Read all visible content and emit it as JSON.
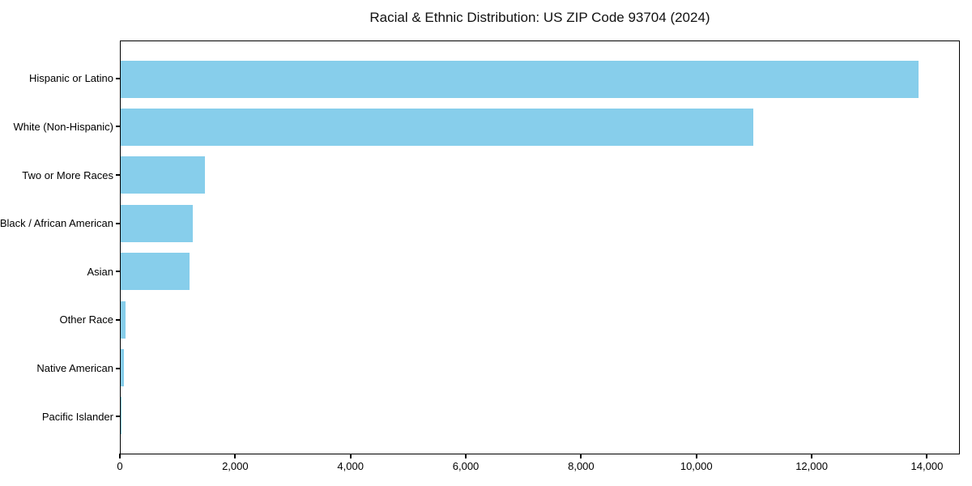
{
  "chart_data": {
    "type": "bar",
    "orientation": "horizontal",
    "title": "Racial & Ethnic Distribution: US ZIP Code 93704 (2024)",
    "xlabel": "",
    "ylabel": "",
    "categories": [
      "Hispanic or Latino",
      "White (Non-Hispanic)",
      "Two or More Races",
      "Black / African American",
      "Asian",
      "Other Race",
      "Native American",
      "Pacific Islander"
    ],
    "values": [
      13860,
      11000,
      1470,
      1250,
      1200,
      90,
      60,
      10
    ],
    "xlim": [
      0,
      14570
    ],
    "xticks": [
      0,
      2000,
      4000,
      6000,
      8000,
      10000,
      12000,
      14000
    ],
    "xtick_labels": [
      "0",
      "2,000",
      "4,000",
      "6,000",
      "8,000",
      "10,000",
      "12,000",
      "14,000"
    ],
    "bar_color": "#87CEEB",
    "grid": false,
    "legend": null
  }
}
